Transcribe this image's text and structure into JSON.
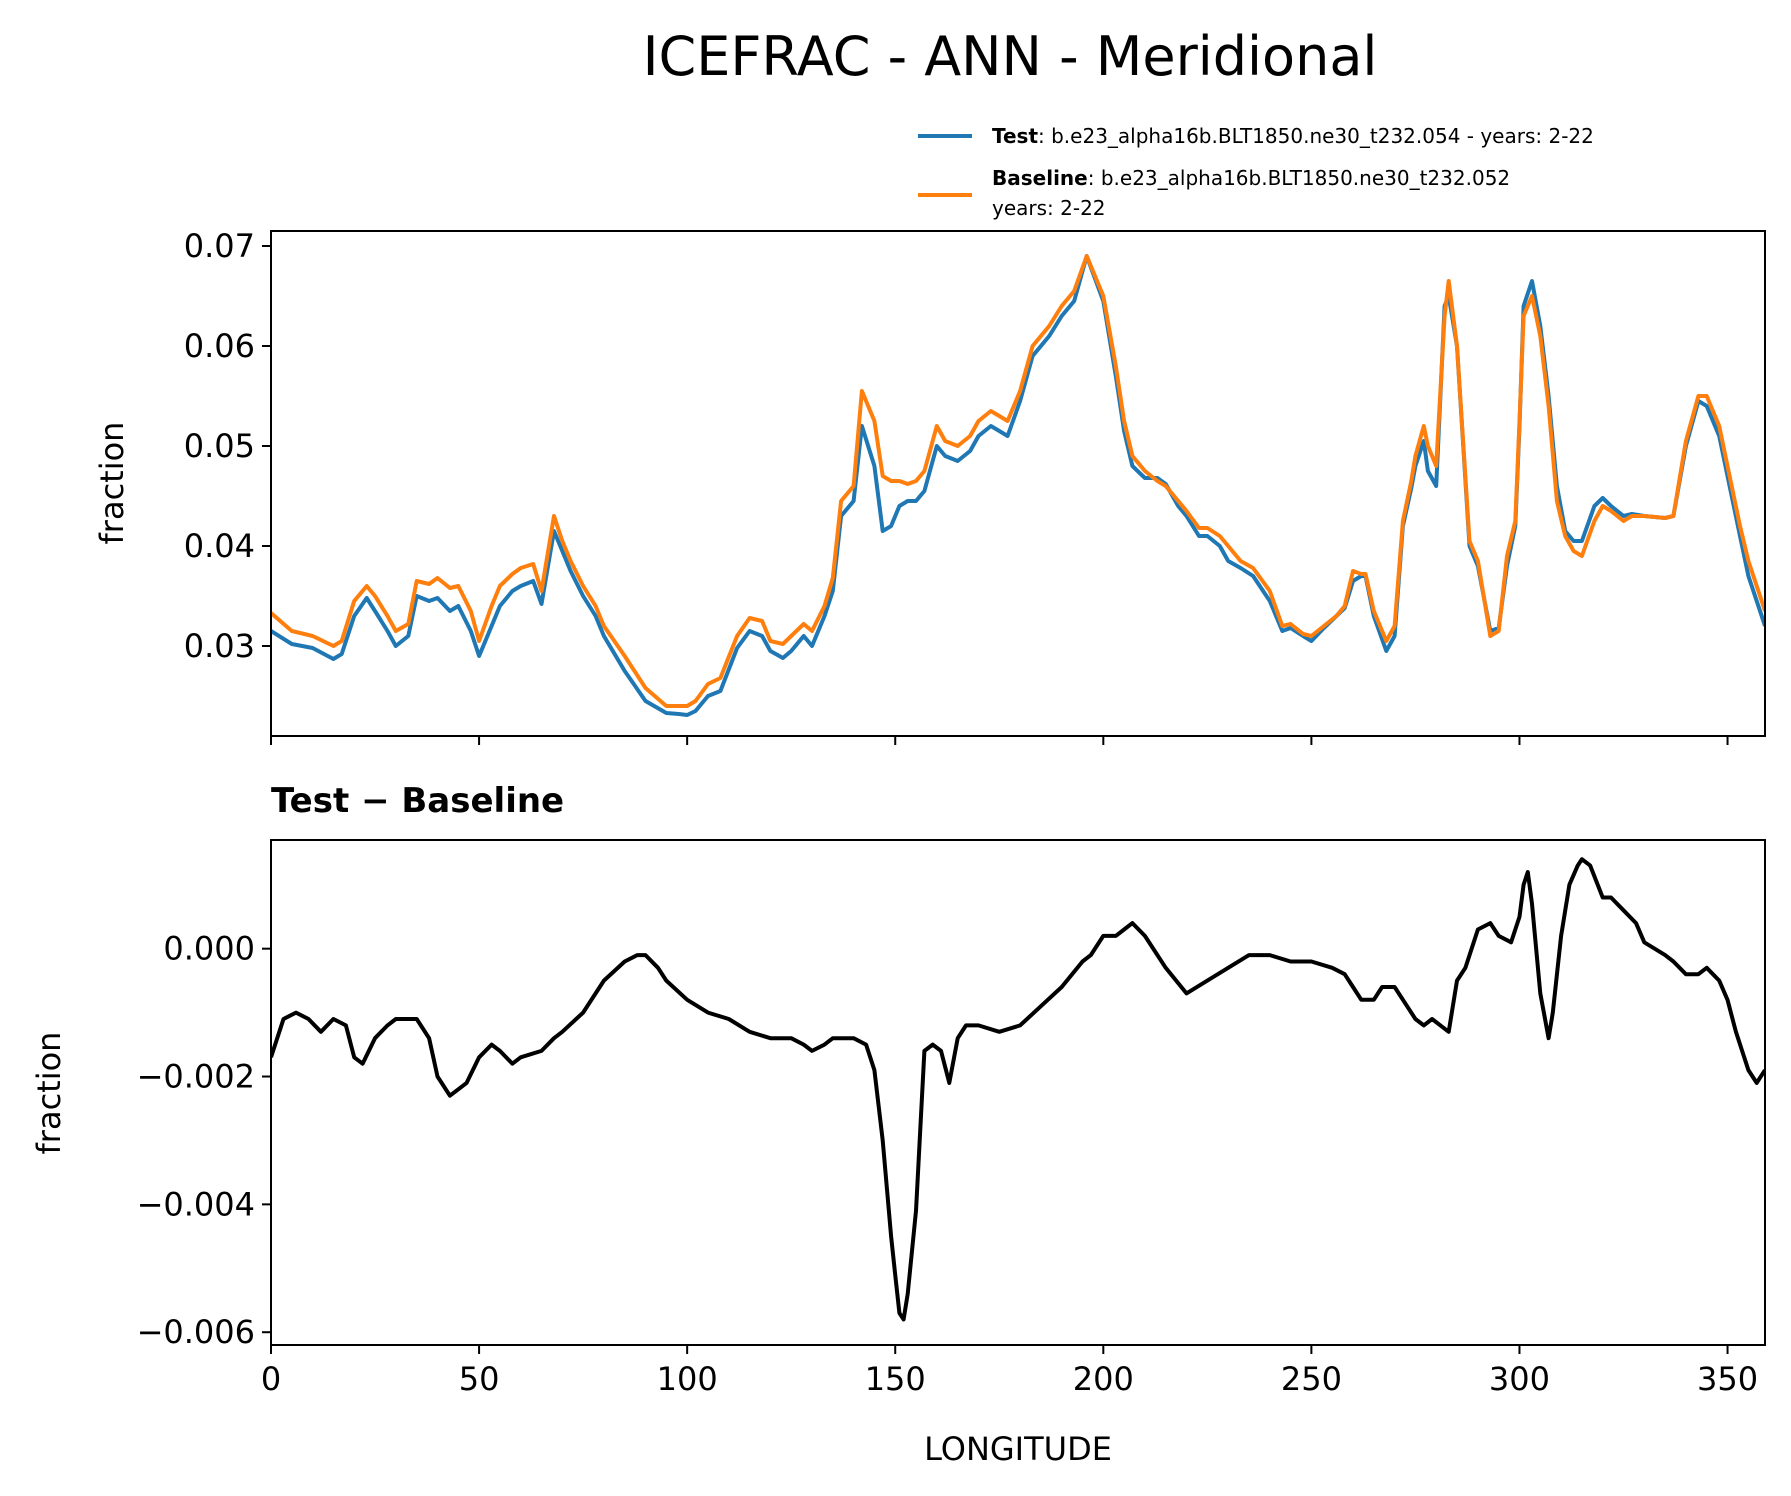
{
  "figure": {
    "title": "ICEFRAC - ANN - Meridional",
    "xlabel": "LONGITUDE"
  },
  "legend": {
    "placement": "above-right",
    "entries": [
      {
        "label_bold": "Test",
        "label_text": ": b.e23_alpha16b.BLT1850.ne30_t232.054 - years: 2-22",
        "color": "#1f77b4"
      },
      {
        "label_bold": "Baseline",
        "label_text": ": b.e23_alpha16b.BLT1850.ne30_t232.052",
        "label_text2": "years: 2-22",
        "color": "#ff7f0e"
      }
    ]
  },
  "chart_data": [
    {
      "type": "line",
      "title": "",
      "xlabel": "",
      "ylabel": "fraction",
      "xlim": [
        0,
        359
      ],
      "ylim": [
        0.021,
        0.0715
      ],
      "xticks": [
        0,
        50,
        100,
        150,
        200,
        250,
        300,
        350
      ],
      "yticks": [
        0.03,
        0.04,
        0.05,
        0.06,
        0.07
      ],
      "ytick_labels": [
        "0.03",
        "0.04",
        "0.05",
        "0.06",
        "0.07"
      ],
      "series": [
        {
          "name": "Test",
          "color": "#1f77b4",
          "x": [
            0,
            5,
            10,
            15,
            17,
            20,
            23,
            25,
            28,
            30,
            33,
            35,
            38,
            40,
            43,
            45,
            48,
            50,
            53,
            55,
            58,
            60,
            63,
            65,
            68,
            70,
            72,
            75,
            78,
            80,
            85,
            90,
            95,
            98,
            100,
            102,
            105,
            108,
            112,
            115,
            118,
            120,
            123,
            125,
            128,
            130,
            133,
            135,
            137,
            140,
            142,
            145,
            147,
            149,
            151,
            153,
            155,
            157,
            160,
            162,
            165,
            168,
            170,
            173,
            175,
            177,
            180,
            183,
            187,
            190,
            193,
            196,
            200,
            203,
            205,
            207,
            210,
            213,
            215,
            218,
            220,
            223,
            225,
            228,
            230,
            233,
            236,
            240,
            243,
            245,
            248,
            250,
            253,
            256,
            258,
            260,
            262,
            263,
            265,
            268,
            270,
            272,
            274,
            275,
            277,
            278,
            280,
            282,
            283,
            285,
            288,
            290,
            293,
            295,
            297,
            299,
            300,
            301,
            303,
            305,
            307,
            309,
            311,
            313,
            315,
            318,
            320,
            322,
            325,
            327,
            330,
            335,
            337,
            340,
            343,
            345,
            348,
            350,
            353,
            355,
            359
          ],
          "values": [
            0.0315,
            0.0302,
            0.0298,
            0.0287,
            0.0292,
            0.033,
            0.0348,
            0.0335,
            0.0315,
            0.03,
            0.031,
            0.035,
            0.0345,
            0.0348,
            0.0335,
            0.034,
            0.0315,
            0.029,
            0.032,
            0.034,
            0.0355,
            0.036,
            0.0365,
            0.0342,
            0.0415,
            0.0395,
            0.0375,
            0.035,
            0.033,
            0.031,
            0.0275,
            0.0245,
            0.0233,
            0.0232,
            0.0231,
            0.0235,
            0.025,
            0.0255,
            0.0298,
            0.0315,
            0.031,
            0.0295,
            0.0288,
            0.0295,
            0.031,
            0.03,
            0.033,
            0.0355,
            0.043,
            0.0445,
            0.052,
            0.048,
            0.0415,
            0.042,
            0.044,
            0.0445,
            0.0445,
            0.0455,
            0.05,
            0.049,
            0.0485,
            0.0495,
            0.051,
            0.052,
            0.0515,
            0.051,
            0.0545,
            0.059,
            0.061,
            0.063,
            0.0645,
            0.069,
            0.0645,
            0.057,
            0.0515,
            0.048,
            0.0468,
            0.0468,
            0.0462,
            0.044,
            0.043,
            0.041,
            0.041,
            0.04,
            0.0385,
            0.0378,
            0.037,
            0.0345,
            0.0315,
            0.0318,
            0.031,
            0.0305,
            0.0318,
            0.033,
            0.0338,
            0.0365,
            0.037,
            0.037,
            0.033,
            0.0295,
            0.031,
            0.042,
            0.0458,
            0.048,
            0.0505,
            0.0475,
            0.046,
            0.064,
            0.065,
            0.06,
            0.04,
            0.038,
            0.0315,
            0.0318,
            0.038,
            0.042,
            0.052,
            0.064,
            0.0665,
            0.062,
            0.055,
            0.046,
            0.0415,
            0.0405,
            0.0405,
            0.044,
            0.0448,
            0.044,
            0.043,
            0.0432,
            0.043,
            0.0428,
            0.043,
            0.05,
            0.0545,
            0.054,
            0.051,
            0.047,
            0.041,
            0.037,
            0.032
          ]
        },
        {
          "name": "Baseline",
          "color": "#ff7f0e",
          "x": [
            0,
            5,
            10,
            15,
            17,
            20,
            23,
            25,
            28,
            30,
            33,
            35,
            38,
            40,
            43,
            45,
            48,
            50,
            53,
            55,
            58,
            60,
            63,
            65,
            68,
            70,
            72,
            75,
            78,
            80,
            85,
            90,
            95,
            98,
            100,
            102,
            105,
            108,
            112,
            115,
            118,
            120,
            123,
            125,
            128,
            130,
            133,
            135,
            137,
            140,
            142,
            145,
            147,
            149,
            151,
            153,
            155,
            157,
            160,
            162,
            165,
            168,
            170,
            173,
            175,
            177,
            180,
            183,
            187,
            190,
            193,
            196,
            200,
            203,
            205,
            207,
            210,
            213,
            215,
            218,
            220,
            223,
            225,
            228,
            230,
            233,
            236,
            240,
            243,
            245,
            248,
            250,
            253,
            256,
            258,
            260,
            262,
            263,
            265,
            268,
            270,
            272,
            274,
            275,
            277,
            278,
            280,
            282,
            283,
            285,
            288,
            290,
            293,
            295,
            297,
            299,
            300,
            301,
            303,
            305,
            307,
            309,
            311,
            313,
            315,
            318,
            320,
            322,
            325,
            327,
            330,
            335,
            337,
            340,
            343,
            345,
            348,
            350,
            353,
            355,
            359
          ],
          "values": [
            0.0333,
            0.0315,
            0.031,
            0.03,
            0.0305,
            0.0345,
            0.036,
            0.035,
            0.033,
            0.0315,
            0.0322,
            0.0365,
            0.0362,
            0.0368,
            0.0358,
            0.036,
            0.0335,
            0.0305,
            0.034,
            0.036,
            0.0372,
            0.0378,
            0.0382,
            0.0355,
            0.043,
            0.0405,
            0.0385,
            0.036,
            0.034,
            0.032,
            0.029,
            0.0258,
            0.024,
            0.024,
            0.024,
            0.0245,
            0.0262,
            0.0268,
            0.031,
            0.0328,
            0.0325,
            0.0305,
            0.0302,
            0.031,
            0.0322,
            0.0315,
            0.034,
            0.0368,
            0.0445,
            0.046,
            0.0555,
            0.0525,
            0.047,
            0.0465,
            0.0465,
            0.0462,
            0.0465,
            0.0475,
            0.052,
            0.0505,
            0.05,
            0.051,
            0.0525,
            0.0535,
            0.053,
            0.0525,
            0.0555,
            0.06,
            0.062,
            0.064,
            0.0655,
            0.069,
            0.065,
            0.058,
            0.0525,
            0.049,
            0.0475,
            0.0465,
            0.046,
            0.0445,
            0.0435,
            0.0418,
            0.0418,
            0.041,
            0.04,
            0.0385,
            0.0378,
            0.0355,
            0.032,
            0.0322,
            0.0312,
            0.031,
            0.032,
            0.033,
            0.034,
            0.0375,
            0.0372,
            0.0372,
            0.0335,
            0.0305,
            0.032,
            0.0425,
            0.0465,
            0.049,
            0.052,
            0.05,
            0.048,
            0.063,
            0.0665,
            0.06,
            0.0405,
            0.0385,
            0.031,
            0.0315,
            0.039,
            0.0425,
            0.0525,
            0.063,
            0.065,
            0.061,
            0.054,
            0.0445,
            0.041,
            0.0395,
            0.039,
            0.0425,
            0.044,
            0.0435,
            0.0425,
            0.043,
            0.043,
            0.0428,
            0.043,
            0.0505,
            0.055,
            0.055,
            0.052,
            0.048,
            0.042,
            0.0385,
            0.0335
          ]
        }
      ]
    },
    {
      "type": "line",
      "title": "Test − Baseline",
      "xlabel": "LONGITUDE",
      "ylabel": "fraction",
      "xlim": [
        0,
        359
      ],
      "ylim": [
        -0.0062,
        0.0017
      ],
      "xticks": [
        0,
        50,
        100,
        150,
        200,
        250,
        300,
        350
      ],
      "xtick_labels": [
        "0",
        "50",
        "100",
        "150",
        "200",
        "250",
        "300",
        "350"
      ],
      "yticks": [
        -0.006,
        -0.004,
        -0.002,
        0.0
      ],
      "ytick_labels": [
        "−0.006",
        "−0.004",
        "−0.002",
        "0.000"
      ],
      "series": [
        {
          "name": "Test − Baseline",
          "color": "#000000",
          "x": [
            0,
            3,
            6,
            9,
            12,
            15,
            18,
            20,
            22,
            25,
            28,
            30,
            35,
            38,
            40,
            43,
            45,
            47,
            50,
            53,
            55,
            58,
            60,
            65,
            68,
            70,
            75,
            80,
            85,
            88,
            90,
            93,
            95,
            100,
            105,
            110,
            115,
            120,
            125,
            128,
            130,
            133,
            135,
            140,
            143,
            145,
            147,
            149,
            150,
            151,
            152,
            153,
            155,
            157,
            159,
            161,
            163,
            165,
            167,
            170,
            175,
            180,
            185,
            190,
            195,
            197,
            200,
            203,
            205,
            207,
            210,
            215,
            220,
            225,
            230,
            235,
            238,
            240,
            245,
            250,
            255,
            258,
            260,
            262,
            265,
            267,
            270,
            273,
            275,
            277,
            279,
            281,
            283,
            285,
            287,
            290,
            293,
            295,
            298,
            300,
            301,
            302,
            303,
            305,
            307,
            308,
            310,
            312,
            314,
            315,
            317,
            320,
            322,
            325,
            328,
            330,
            335,
            337,
            340,
            343,
            345,
            348,
            350,
            352,
            355,
            357,
            359
          ],
          "values": [
            -0.0017,
            -0.0011,
            -0.001,
            -0.0011,
            -0.0013,
            -0.0011,
            -0.0012,
            -0.0017,
            -0.0018,
            -0.0014,
            -0.0012,
            -0.0011,
            -0.0011,
            -0.0014,
            -0.002,
            -0.0023,
            -0.0022,
            -0.0021,
            -0.0017,
            -0.0015,
            -0.0016,
            -0.0018,
            -0.0017,
            -0.0016,
            -0.0014,
            -0.0013,
            -0.001,
            -0.0005,
            -0.0002,
            -0.0001,
            -0.0001,
            -0.0003,
            -0.0005,
            -0.0008,
            -0.001,
            -0.0011,
            -0.0013,
            -0.0014,
            -0.0014,
            -0.0015,
            -0.0016,
            -0.0015,
            -0.0014,
            -0.0014,
            -0.0015,
            -0.0019,
            -0.003,
            -0.0045,
            -0.0051,
            -0.0057,
            -0.0058,
            -0.0054,
            -0.0041,
            -0.0016,
            -0.0015,
            -0.0016,
            -0.0021,
            -0.0014,
            -0.0012,
            -0.0012,
            -0.0013,
            -0.0012,
            -0.0009,
            -0.0006,
            -0.0002,
            -0.0001,
            0.0002,
            0.0002,
            0.0003,
            0.0004,
            0.0002,
            -0.0003,
            -0.0007,
            -0.0005,
            -0.0003,
            -0.0001,
            -0.0001,
            -0.0001,
            -0.0002,
            -0.0002,
            -0.0003,
            -0.0004,
            -0.0006,
            -0.0008,
            -0.0008,
            -0.0006,
            -0.0006,
            -0.0009,
            -0.0011,
            -0.0012,
            -0.0011,
            -0.0012,
            -0.0013,
            -0.0005,
            -0.0003,
            0.0003,
            0.0004,
            0.0002,
            0.0001,
            0.0005,
            0.001,
            0.0012,
            0.0007,
            -0.0007,
            -0.0014,
            -0.001,
            0.0002,
            0.001,
            0.0013,
            0.0014,
            0.0013,
            0.0008,
            0.0008,
            0.0006,
            0.0004,
            0.0001,
            -0.0001,
            -0.0002,
            -0.0004,
            -0.0004,
            -0.0003,
            -0.0005,
            -0.0008,
            -0.0013,
            -0.0019,
            -0.0021,
            -0.0019
          ]
        }
      ]
    }
  ]
}
